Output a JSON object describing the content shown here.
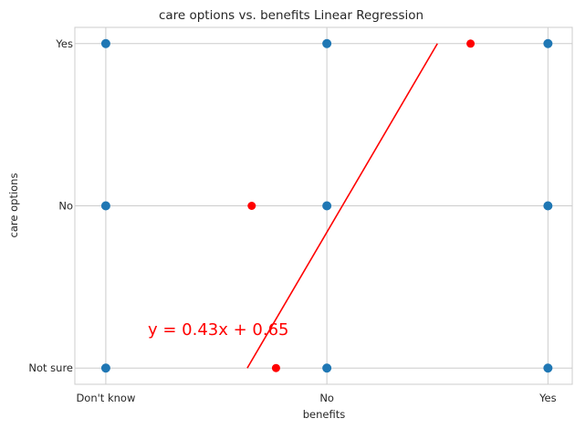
{
  "chart_data": {
    "type": "scatter",
    "title": "care options vs. benefits Linear Regression",
    "xlabel": "benefits",
    "ylabel": "care options",
    "x_categories": [
      "Don't know",
      "No",
      "Yes"
    ],
    "y_categories": [
      "Not sure",
      "No",
      "Yes"
    ],
    "xlim": [
      -0.14,
      2.11
    ],
    "ylim": [
      -0.1,
      2.1
    ],
    "grid": true,
    "colors": {
      "points": "#1f77b4",
      "outliers": "#ff0000",
      "fit_line": "#ff0000",
      "equation": "#ff0000",
      "grid": "#cccccc",
      "spine": "#cccccc"
    },
    "series": [
      {
        "values": [
          {
            "x": 0,
            "y": 0
          },
          {
            "x": 0,
            "y": 1
          },
          {
            "x": 0,
            "y": 2
          },
          {
            "x": 1,
            "y": 0
          },
          {
            "x": 1,
            "y": 1
          },
          {
            "x": 1,
            "y": 2
          },
          {
            "x": 2,
            "y": 0
          },
          {
            "x": 2,
            "y": 1
          },
          {
            "x": 2,
            "y": 2
          }
        ]
      },
      {
        "values": [
          {
            "x": 0.66,
            "y": 1.0
          },
          {
            "x": 0.77,
            "y": 0.0
          },
          {
            "x": 1.65,
            "y": 2.0
          }
        ]
      }
    ],
    "regression": {
      "x_start": 0.64,
      "x_end": 1.5,
      "y_start": 0.0,
      "y_end": 2.0,
      "equation": "y = 0.43x + 0.65"
    }
  }
}
